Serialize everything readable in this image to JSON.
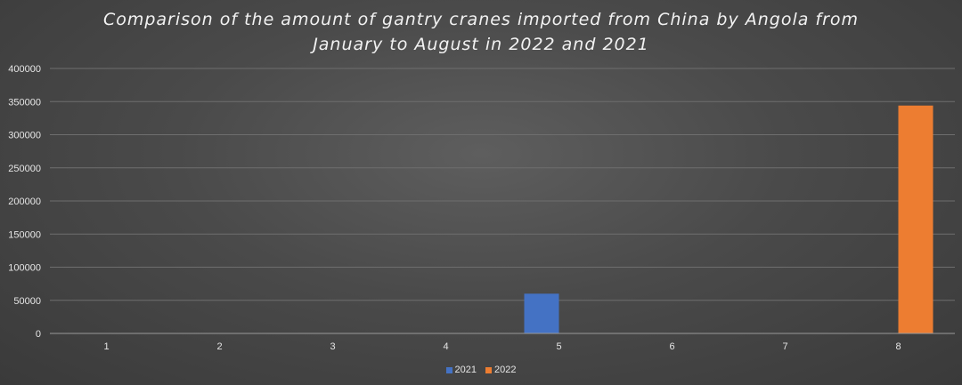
{
  "chart_data": {
    "type": "bar",
    "title": "Comparison of the amount of gantry cranes imported from China by Angola from\nJanuary to August in 2022 and 2021",
    "xlabel": "",
    "ylabel": "",
    "categories": [
      "1",
      "2",
      "3",
      "4",
      "5",
      "6",
      "7",
      "8"
    ],
    "series": [
      {
        "name": "2021",
        "color": "#4472c4",
        "values": [
          0,
          0,
          0,
          0,
          60000,
          0,
          0,
          0
        ]
      },
      {
        "name": "2022",
        "color": "#ed7d31",
        "values": [
          0,
          0,
          0,
          0,
          0,
          0,
          0,
          344000
        ]
      }
    ],
    "ylim": [
      0,
      400000
    ],
    "yticks": [
      "0",
      "50000",
      "100000",
      "150000",
      "200000",
      "250000",
      "300000",
      "350000",
      "400000"
    ],
    "grid": true,
    "legend_position": "bottom"
  }
}
